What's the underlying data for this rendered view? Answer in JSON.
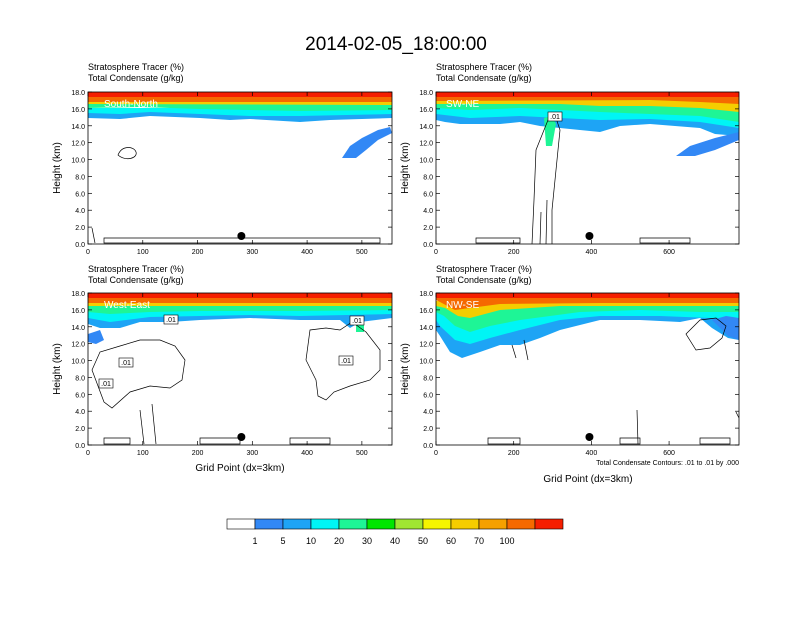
{
  "title": "2014-02-05_18:00:00",
  "panel_header": {
    "line1": "Stratosphere Tracer   (%)",
    "line2": "Total Condensate   (g/kg)"
  },
  "y_axis_label": "Height (km)",
  "x_axis_label": "Grid Point (dx=3km)",
  "contour_note": "Total Condensate Contours: .01 to .01 by .000",
  "colorbar": {
    "colors": [
      "#ffffff",
      "#3288f5",
      "#1ea4f5",
      "#00f5f5",
      "#1ef596",
      "#00e600",
      "#a0e632",
      "#f5f500",
      "#f5cd00",
      "#f5a000",
      "#f56900",
      "#f51e00"
    ],
    "labels": [
      "1",
      "5",
      "10",
      "20",
      "30",
      "40",
      "50",
      "60",
      "70",
      "100"
    ]
  },
  "chart_data": [
    {
      "type": "heatmap",
      "name": "South-North",
      "xlim": [
        0,
        555
      ],
      "ylim": [
        0,
        18
      ],
      "xticks": [
        0,
        100,
        200,
        300,
        400,
        500
      ],
      "yticks": [
        "0.0",
        "2.0",
        "4.0",
        "6.0",
        "8.0",
        "10.0",
        "12.0",
        "14.0",
        "16.0",
        "18.0"
      ],
      "marker_x": 280
    },
    {
      "type": "heatmap",
      "name": "SW-NE",
      "xlim": [
        0,
        780
      ],
      "ylim": [
        0,
        18
      ],
      "xticks": [
        0,
        200,
        400,
        600
      ],
      "yticks": [
        "0.0",
        "2.0",
        "4.0",
        "6.0",
        "8.0",
        "10.0",
        "12.0",
        "14.0",
        "16.0",
        "18.0"
      ],
      "marker_x": 395,
      "contour_labels": [
        ".01"
      ]
    },
    {
      "type": "heatmap",
      "name": "West-East",
      "xlim": [
        0,
        555
      ],
      "ylim": [
        0,
        18
      ],
      "xticks": [
        0,
        100,
        200,
        300,
        400,
        500
      ],
      "yticks": [
        "0.0",
        "2.0",
        "4.0",
        "6.0",
        "8.0",
        "10.0",
        "12.0",
        "14.0",
        "16.0",
        "18.0"
      ],
      "marker_x": 280,
      "contour_labels": [
        ".01",
        ".01",
        ".01",
        ".01",
        ".01"
      ]
    },
    {
      "type": "heatmap",
      "name": "NW-SE",
      "xlim": [
        0,
        780
      ],
      "ylim": [
        0,
        18
      ],
      "xticks": [
        0,
        200,
        400,
        600
      ],
      "yticks": [
        "0.0",
        "2.0",
        "4.0",
        "6.0",
        "8.0",
        "10.0",
        "12.0",
        "14.0",
        "16.0",
        "18.0"
      ],
      "marker_x": 395
    }
  ]
}
